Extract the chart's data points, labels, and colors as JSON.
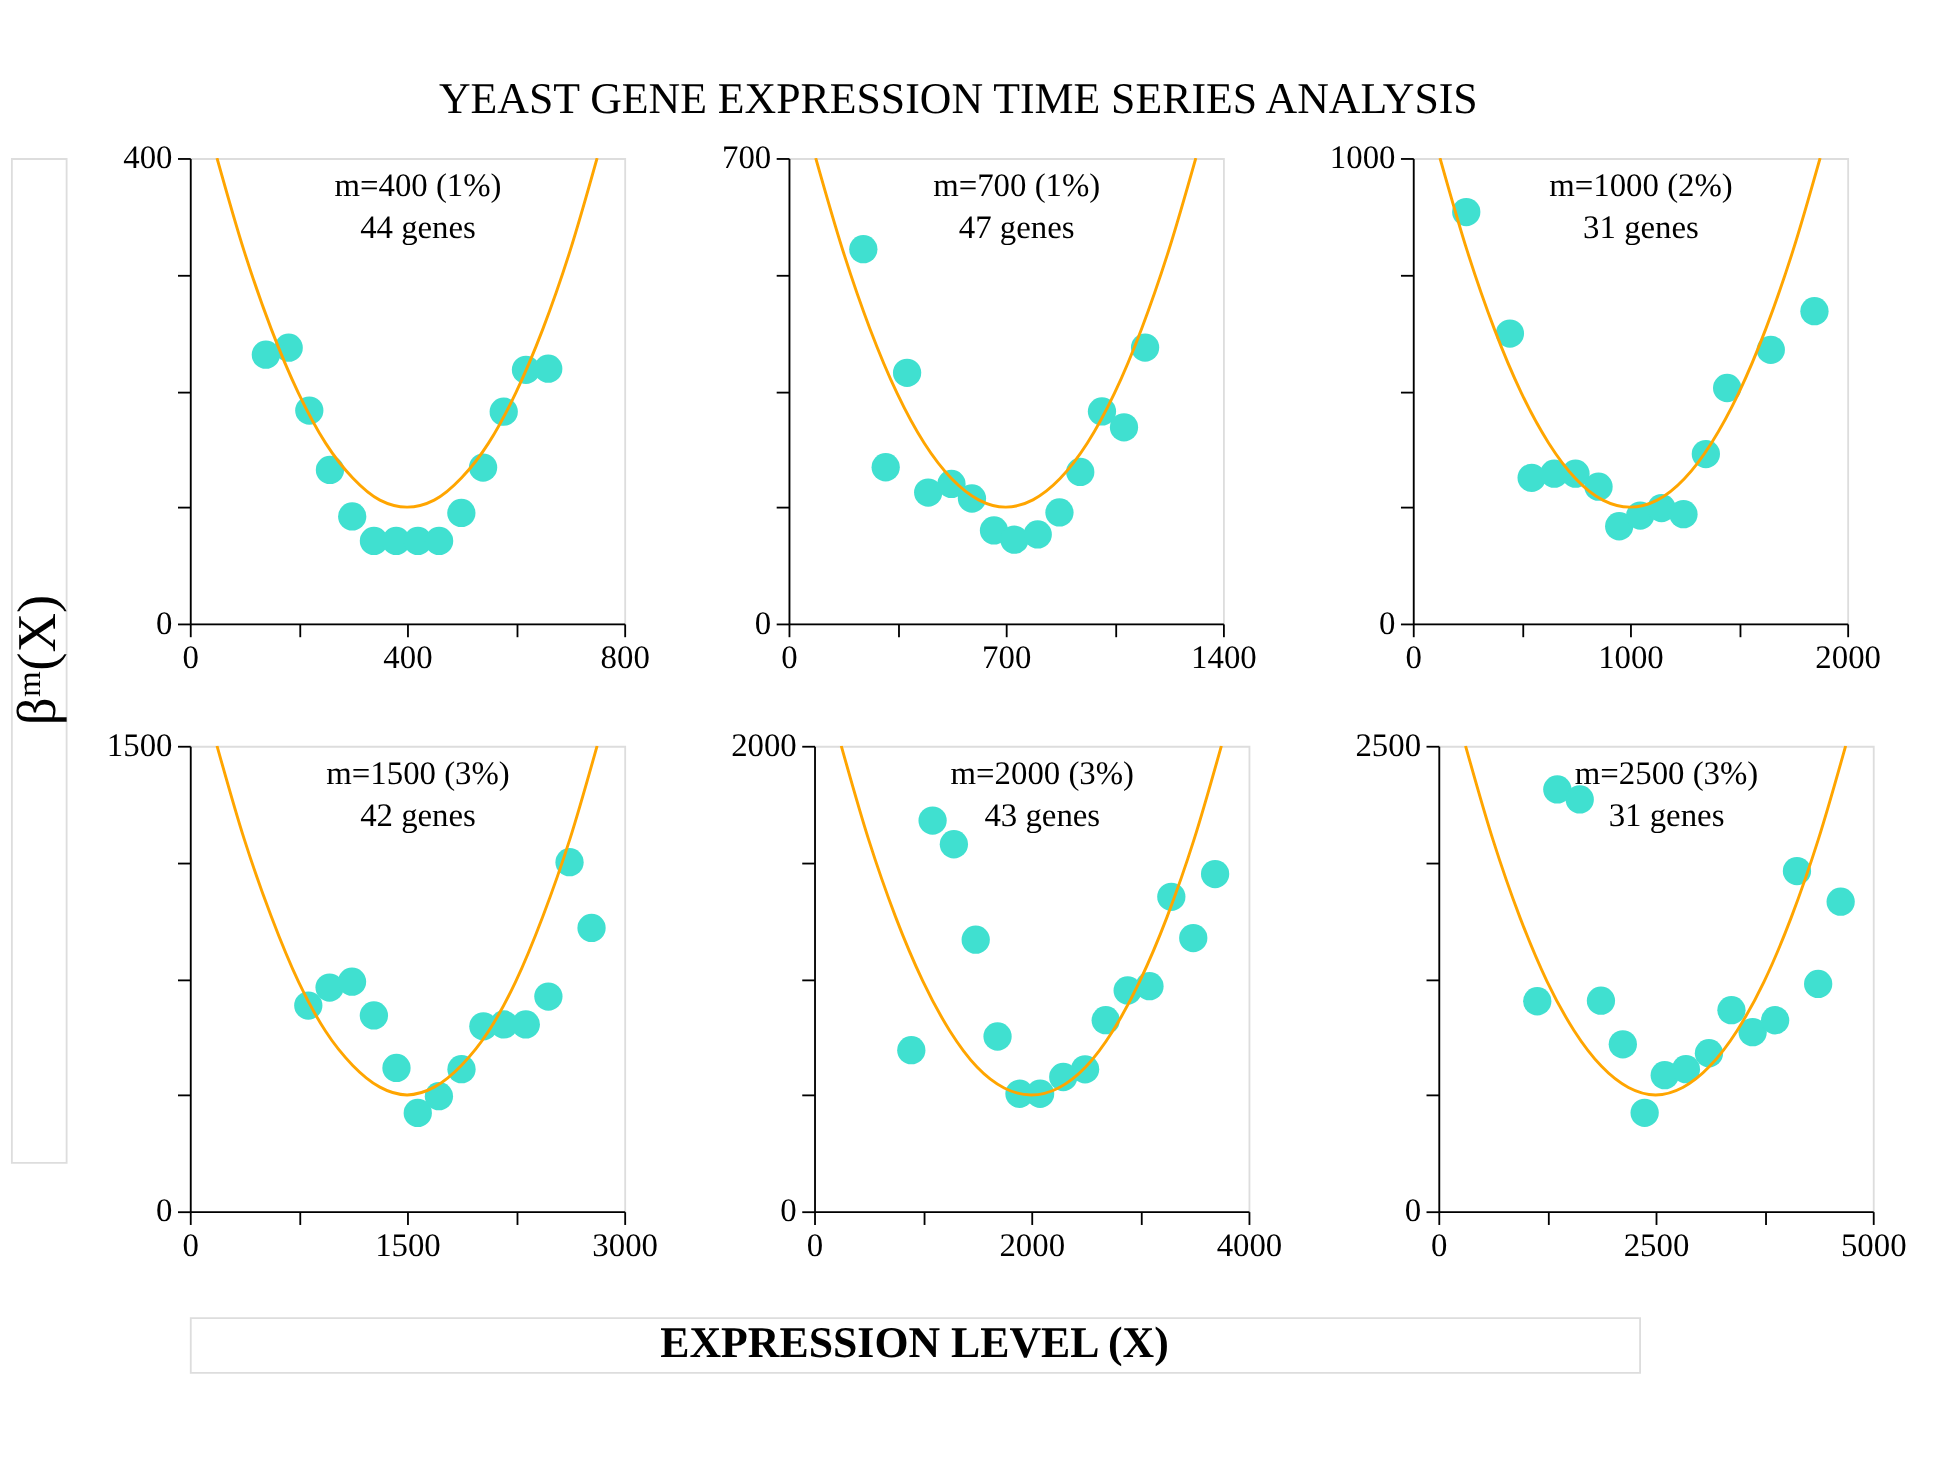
{
  "chart_data": [
    {
      "type": "scatter",
      "title": "YEAST GENE EXPRESSION TIME SERIES ANALYSIS",
      "ylabel": "βᵐ(X)",
      "annotations": [
        "m=400 (1%)",
        "44 genes"
      ],
      "marker": "circle",
      "grid": false,
      "xlim": [
        0,
        800
      ],
      "xticks": [
        0,
        {
          "value": 200,
          "label": null
        },
        400,
        {
          "value": 600,
          "label": null
        },
        800
      ],
      "ylim": [
        0,
        400
      ],
      "yticks": [
        0,
        {
          "value": 100,
          "label": null
        },
        {
          "value": 200,
          "label": null
        },
        {
          "value": 300,
          "label": null
        },
        400
      ],
      "series": [
        {
          "color": "#40e0d0",
          "x": [
            140,
            182,
            220,
            258,
            299,
            339,
            380,
            420,
            459,
            500,
            540,
            578,
            619,
            660
          ],
          "values": [
            231,
            237,
            183,
            132,
            92,
            71,
            71,
            71,
            71,
            95,
            134,
            182,
            218,
            219
          ]
        },
        {
          "type": "line",
          "marker": "none",
          "color": "#ffa500",
          "x": [
            50,
            100,
            150,
            200,
            250,
            300,
            350,
            400,
            450,
            500,
            550,
            600,
            650,
            700,
            750
          ],
          "values": [
            400,
            320,
            253,
            198,
            155,
            125,
            106,
            100,
            106,
            125,
            155,
            198,
            253,
            320,
            400
          ]
        }
      ]
    },
    {
      "type": "scatter",
      "annotations": [
        "m=700 (1%)",
        "47 genes"
      ],
      "marker": "circle",
      "grid": false,
      "xlim": [
        0,
        1400
      ],
      "xticks": [
        0,
        {
          "value": 350,
          "label": null
        },
        700,
        {
          "value": 1050,
          "label": null
        },
        1400
      ],
      "ylim": [
        0,
        700
      ],
      "yticks": [
        0,
        {
          "value": 175,
          "label": null
        },
        {
          "value": 350,
          "label": null
        },
        {
          "value": 525,
          "label": null
        },
        700
      ],
      "series": [
        {
          "color": "#40e0d0",
          "x": [
            241,
            382,
            313,
            450,
            525,
            591,
            662,
            728,
            803,
            873,
            940,
            1010,
            1081,
            1149
          ],
          "values": [
            563,
            377,
            235,
            197,
            210,
            188,
            140,
            126,
            134,
            167,
            228,
            319,
            295,
            415
          ]
        },
        {
          "type": "line",
          "marker": "none",
          "color": "#ffa500",
          "x": [
            87.5,
            175,
            262.5,
            350,
            437.5,
            525,
            612.5,
            700,
            787.5,
            875,
            962.5,
            1050,
            1137.5,
            1225,
            1312.5
          ],
          "values": [
            700,
            561,
            443,
            346,
            271,
            218,
            186,
            175,
            186,
            218,
            271,
            346,
            443,
            561,
            700
          ]
        }
      ]
    },
    {
      "type": "scatter",
      "annotations": [
        "m=1000 (2%)",
        "31 genes"
      ],
      "marker": "circle",
      "grid": false,
      "xlim": [
        0,
        2000
      ],
      "xticks": [
        0,
        {
          "value": 500,
          "label": null
        },
        1000,
        {
          "value": 1500,
          "label": null
        },
        2000
      ],
      "ylim": [
        0,
        1000
      ],
      "yticks": [
        0,
        {
          "value": 250,
          "label": null
        },
        {
          "value": 500,
          "label": null
        },
        {
          "value": 750,
          "label": null
        },
        1000
      ],
      "series": [
        {
          "color": "#40e0d0",
          "x": [
            246,
            447,
            547,
            651,
            749,
            855,
            950,
            1047,
            1145,
            1246,
            1349,
            1447,
            1648,
            1849
          ],
          "values": [
            884,
            623,
            313,
            322,
            322,
            294,
            209,
            232,
            248,
            235,
            364,
            506,
            588,
            671
          ]
        },
        {
          "type": "line",
          "marker": "none",
          "color": "#ffa500",
          "x": [
            125,
            250,
            375,
            500,
            625,
            750,
            875,
            1000,
            1125,
            1250,
            1375,
            1500,
            1625,
            1750,
            1875
          ],
          "values": [
            1000,
            801,
            633,
            495,
            388,
            311,
            265,
            250,
            265,
            311,
            388,
            495,
            633,
            801,
            1000
          ]
        }
      ]
    },
    {
      "type": "scatter",
      "annotations": [
        "m=1500 (3%)",
        "42 genes"
      ],
      "marker": "circle",
      "grid": false,
      "xlim": [
        0,
        3000
      ],
      "xticks": [
        0,
        {
          "value": 750,
          "label": null
        },
        1500,
        {
          "value": 2250,
          "label": null
        },
        3000
      ],
      "ylim": [
        0,
        1500
      ],
      "yticks": [
        0,
        {
          "value": 375,
          "label": null
        },
        {
          "value": 750,
          "label": null
        },
        {
          "value": 1125,
          "label": null
        },
        1500
      ],
      "series": [
        {
          "color": "#40e0d0",
          "x": [
            818,
            965,
            1120,
            1271,
            1427,
            1574,
            1720,
            1876,
            2027,
            2169,
            2320,
            2476,
            2622,
            2774
          ],
          "values": [
            663,
            721,
            740,
            631,
            462,
            317,
            371,
            458,
            596,
            602,
            602,
            692,
            1125,
            913
          ]
        },
        {
          "type": "line",
          "marker": "none",
          "color": "#ffa500",
          "x": [
            187.5,
            375,
            562.5,
            750,
            937.5,
            1125,
            1312.5,
            1500,
            1687.5,
            1875,
            2062.5,
            2250,
            2437.5,
            2625,
            2812.5
          ],
          "values": [
            1500,
            1200,
            950,
            740,
            580,
            470,
            400,
            375,
            400,
            470,
            580,
            740,
            950,
            1200,
            1500
          ]
        }
      ]
    },
    {
      "type": "scatter",
      "xlabel": "EXPRESSION LEVEL (X)",
      "annotations": [
        "m=2000 (3%)",
        "43 genes"
      ],
      "marker": "circle",
      "grid": false,
      "xlim": [
        0,
        4000
      ],
      "xticks": [
        0,
        {
          "value": 1000,
          "label": null
        },
        2000,
        {
          "value": 3000,
          "label": null
        },
        4000
      ],
      "ylim": [
        0,
        2000
      ],
      "yticks": [
        0,
        {
          "value": 500,
          "label": null
        },
        {
          "value": 1000,
          "label": null
        },
        {
          "value": 1500,
          "label": null
        },
        2000
      ],
      "series": [
        {
          "color": "#40e0d0",
          "x": [
            895,
            1091,
            1287,
            1488,
            1689,
            1891,
            2081,
            2294,
            2495,
            2685,
            2887,
            3088,
            3289,
            3491,
            3692
          ],
          "values": [
            692,
            1679,
            1577,
            1167,
            751,
            505,
            505,
            577,
            610,
            821,
            949,
            967,
            1351,
            1174,
            1449
          ]
        },
        {
          "type": "line",
          "marker": "none",
          "color": "#ffa500",
          "x": [
            250,
            500,
            750,
            1000,
            1250,
            1500,
            1750,
            2000,
            2250,
            2500,
            2750,
            3000,
            3250,
            3500,
            3750
          ],
          "values": [
            2000,
            1600,
            1265,
            990,
            775,
            620,
            530,
            500,
            530,
            620,
            775,
            990,
            1265,
            1600,
            2000
          ]
        }
      ]
    },
    {
      "type": "scatter",
      "annotations": [
        "m=2500 (3%)",
        "31 genes"
      ],
      "marker": "circle",
      "grid": false,
      "xlim": [
        0,
        5000
      ],
      "xticks": [
        0,
        {
          "value": 1250,
          "label": null
        },
        2500,
        {
          "value": 3750,
          "label": null
        },
        5000
      ],
      "ylim": [
        0,
        2500
      ],
      "yticks": [
        0,
        {
          "value": 625,
          "label": null
        },
        {
          "value": 1250,
          "label": null
        },
        {
          "value": 1875,
          "label": null
        },
        2500
      ],
      "series": [
        {
          "color": "#40e0d0",
          "x": [
            1138,
            1369,
            1627,
            1871,
            2123,
            2374,
            2605,
            2849,
            3114,
            3373,
            3617,
            3876,
            4127,
            4371,
            4630
          ],
          "values": [
            1128,
            2266,
            2212,
            1131,
            897,
            529,
            731,
            763,
            849,
            1080,
            962,
            1026,
            1827,
            1221,
            1663
          ]
        },
        {
          "type": "line",
          "marker": "none",
          "color": "#ffa500",
          "x": [
            312.5,
            625,
            937.5,
            1250,
            1562.5,
            1875,
            2187.5,
            2500,
            2812.5,
            3125,
            3437.5,
            3750,
            4062.5,
            4375,
            4687.5
          ],
          "values": [
            2500,
            2000,
            1580,
            1235,
            970,
            780,
            665,
            625,
            665,
            780,
            970,
            1235,
            1580,
            2000,
            2500
          ]
        }
      ]
    }
  ]
}
